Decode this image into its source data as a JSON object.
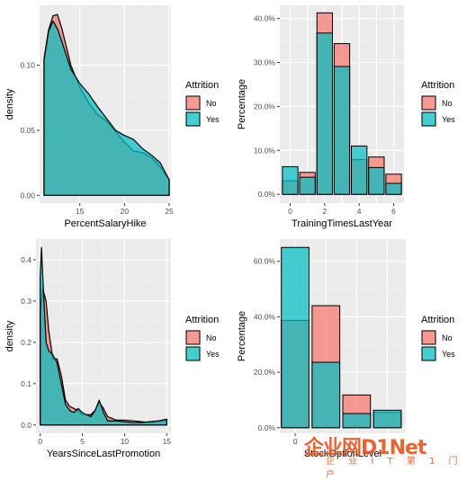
{
  "chart_data": [
    {
      "type": "area",
      "xlabel": "PercentSalaryHike",
      "ylabel": "density",
      "xlim": [
        10.5,
        25.2
      ],
      "ylim": [
        -0.006,
        0.146
      ],
      "x_ticks": [
        15,
        20,
        25
      ],
      "x_tick_labels": [
        "15",
        "20",
        "25"
      ],
      "y_ticks": [
        0.0,
        0.05,
        0.1
      ],
      "y_tick_labels": [
        "0.00",
        "0.05",
        "0.10"
      ],
      "legend_title": "Attrition",
      "legend_placement": "right",
      "series": [
        {
          "name": "No",
          "x": [
            11,
            11.5,
            12,
            12.5,
            13,
            14,
            15,
            16,
            17,
            18,
            19,
            20,
            21,
            22,
            23,
            24,
            25
          ],
          "y": [
            0.105,
            0.127,
            0.138,
            0.139,
            0.128,
            0.1,
            0.083,
            0.071,
            0.062,
            0.057,
            0.049,
            0.041,
            0.034,
            0.033,
            0.029,
            0.022,
            0.012
          ]
        },
        {
          "name": "Yes",
          "x": [
            11,
            11.5,
            12,
            12.5,
            13,
            14,
            15,
            16,
            17,
            18,
            19,
            20,
            21,
            22,
            23,
            24,
            25
          ],
          "y": [
            0.104,
            0.126,
            0.134,
            0.128,
            0.118,
            0.097,
            0.086,
            0.078,
            0.068,
            0.059,
            0.05,
            0.046,
            0.043,
            0.036,
            0.031,
            0.025,
            0.012
          ]
        }
      ]
    },
    {
      "type": "bar",
      "xlabel": "TrainingTimesLastYear",
      "ylabel": "Percentage",
      "xlim": [
        -0.6,
        6.6
      ],
      "ylim": [
        -0.02,
        0.43
      ],
      "x_ticks": [
        0,
        2,
        4,
        6
      ],
      "x_tick_labels": [
        "0",
        "2",
        "4",
        "6"
      ],
      "y_ticks": [
        0,
        0.1,
        0.2,
        0.3,
        0.4
      ],
      "y_tick_labels": [
        "0.0%",
        "10.0%",
        "20.0%",
        "30.0%",
        "40.0%"
      ],
      "legend_title": "Attrition",
      "legend_placement": "right",
      "categories": [
        0,
        1,
        2,
        3,
        4,
        5,
        6
      ],
      "series": [
        {
          "name": "No",
          "values": [
            0.031,
            0.05,
            0.413,
            0.343,
            0.079,
            0.085,
            0.046
          ]
        },
        {
          "name": "Yes",
          "values": [
            0.063,
            0.039,
            0.367,
            0.291,
            0.11,
            0.061,
            0.025
          ]
        }
      ]
    },
    {
      "type": "area",
      "xlabel": "YearsSinceLastPromotion",
      "ylabel": "density",
      "xlim": [
        -0.5,
        15.5
      ],
      "ylim": [
        -0.02,
        0.45
      ],
      "x_ticks": [
        0,
        5,
        10,
        15
      ],
      "x_tick_labels": [
        "0",
        "5",
        "10",
        "15"
      ],
      "y_ticks": [
        0.0,
        0.1,
        0.2,
        0.3,
        0.4
      ],
      "y_tick_labels": [
        "0.0",
        "0.1",
        "0.2",
        "0.3",
        "0.4"
      ],
      "legend_title": "Attrition",
      "legend_placement": "right",
      "series": [
        {
          "name": "No",
          "x": [
            0,
            0.3,
            0.7,
            1,
            1.5,
            2,
            2.5,
            3,
            3.5,
            4,
            4.5,
            5,
            6,
            6.5,
            7,
            7.5,
            8,
            9,
            10,
            11,
            12,
            13,
            14,
            15
          ],
          "y": [
            0.27,
            0.33,
            0.3,
            0.23,
            0.16,
            0.16,
            0.12,
            0.06,
            0.045,
            0.04,
            0.035,
            0.025,
            0.025,
            0.035,
            0.055,
            0.04,
            0.02,
            0.012,
            0.012,
            0.01,
            0.008,
            0.006,
            0.008,
            0.012
          ]
        },
        {
          "name": "Yes",
          "x": [
            0,
            0.15,
            0.4,
            0.7,
            1,
            1.5,
            2,
            2.5,
            3,
            3.5,
            4,
            4.5,
            5,
            6,
            6.5,
            7,
            7.5,
            8,
            9,
            10,
            11,
            12,
            13,
            14,
            15
          ],
          "y": [
            0.36,
            0.43,
            0.32,
            0.2,
            0.18,
            0.17,
            0.15,
            0.1,
            0.05,
            0.035,
            0.03,
            0.04,
            0.03,
            0.02,
            0.035,
            0.06,
            0.03,
            0.01,
            0.01,
            0.008,
            0.006,
            0.006,
            0.008,
            0.01,
            0.014
          ]
        }
      ]
    },
    {
      "type": "bar",
      "xlabel": "StockOptionLevel",
      "ylabel": "Percentage",
      "xlim": [
        -0.5,
        3.6
      ],
      "ylim": [
        -0.02,
        0.68
      ],
      "x_ticks": [
        0
      ],
      "x_tick_labels": [
        "0"
      ],
      "y_ticks": [
        0,
        0.2,
        0.4,
        0.6
      ],
      "y_tick_labels": [
        "0.0%",
        "20.0%",
        "40.0%",
        "60.0%"
      ],
      "legend_title": "Attrition",
      "legend_placement": "right",
      "categories": [
        0,
        1,
        2,
        3
      ],
      "series": [
        {
          "name": "No",
          "values": [
            0.387,
            0.44,
            0.118,
            0.055
          ]
        },
        {
          "name": "Yes",
          "values": [
            0.65,
            0.236,
            0.051,
            0.063
          ]
        }
      ]
    }
  ],
  "colors": {
    "no_fill": "#f8766d",
    "yes_fill": "#00bfc4",
    "panel_bg": "#ebebeb",
    "grid_major": "#ffffff",
    "text_dark": "#4d4d4d",
    "text_title": "#000000"
  },
  "watermark": {
    "logo": "企业网D1Net",
    "subtitle": "企 业 I T 第 1 门 户"
  }
}
